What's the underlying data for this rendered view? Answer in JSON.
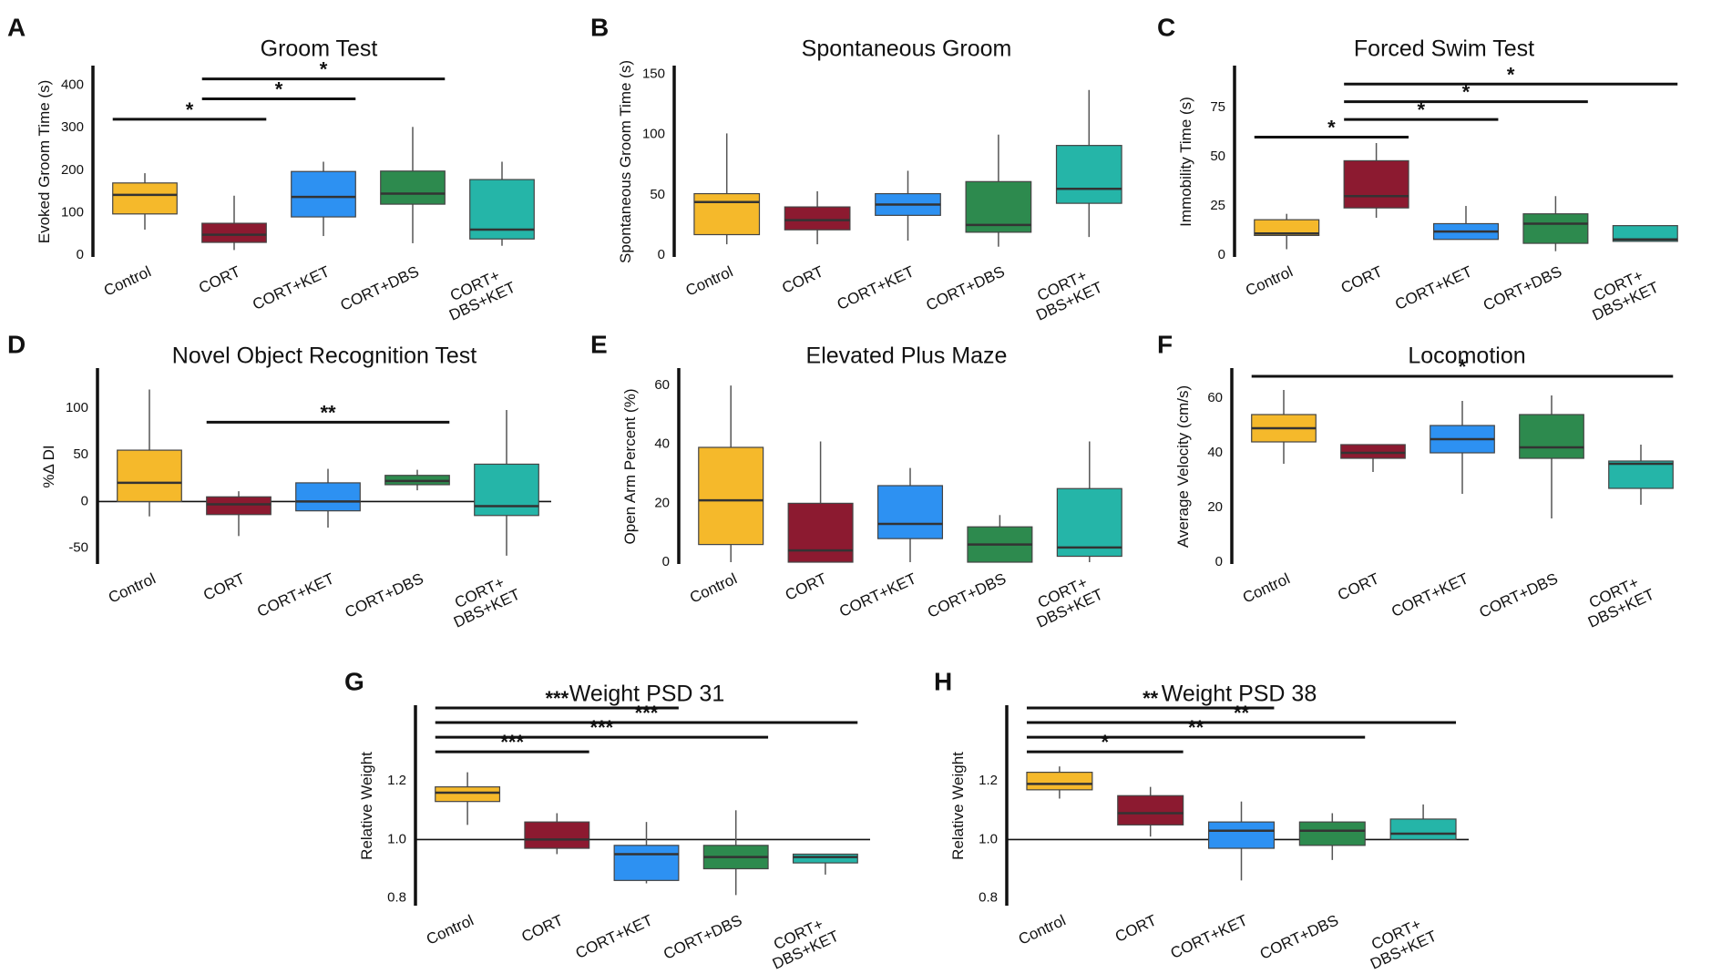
{
  "colors": {
    "Control": "#f5b92b",
    "CORT": "#8c1a30",
    "CORT+KET": "#2d91f2",
    "CORT+DBS": "#2d8a4e",
    "CORT+DBS+KET": "#25b5a8",
    "axis": "#111111",
    "median": "#333333"
  },
  "chart_data": [
    {
      "panel": "A",
      "type": "box",
      "title": "Groom Test",
      "ylabel": "Evoked Groom Time (s)",
      "ylim": [
        0,
        440
      ],
      "yticks": [
        0,
        100,
        200,
        300,
        400
      ],
      "zero_line": false,
      "categories": [
        [
          "Control"
        ],
        [
          "CORT"
        ],
        [
          "CORT+KET"
        ],
        [
          "CORT+DBS"
        ],
        [
          "CORT+",
          "DBS+KET"
        ]
      ],
      "boxes": [
        {
          "whisker_low": 60,
          "q1": 97,
          "median": 142,
          "q3": 170,
          "whisker_high": 193
        },
        {
          "whisker_low": 12,
          "q1": 30,
          "median": 48,
          "q3": 75,
          "whisker_high": 140
        },
        {
          "whisker_low": 45,
          "q1": 90,
          "median": 137,
          "q3": 197,
          "whisker_high": 220
        },
        {
          "whisker_low": 28,
          "q1": 120,
          "median": 145,
          "q3": 198,
          "whisker_high": 302
        },
        {
          "whisker_low": 22,
          "q1": 38,
          "median": 60,
          "q3": 178,
          "whisker_high": 220
        }
      ],
      "significance": [
        {
          "from": 0,
          "to": 1,
          "y": 320,
          "label": "*"
        },
        {
          "from": 1,
          "to": 2,
          "y": 368,
          "label": "*"
        },
        {
          "from": 1,
          "to": 3,
          "y": 415,
          "label": "*"
        }
      ]
    },
    {
      "panel": "B",
      "type": "box",
      "title": "Spontaneous Groom",
      "ylabel": "Spontaneous Groom Time (s)",
      "ylim": [
        0,
        155
      ],
      "yticks": [
        0,
        50,
        100,
        150
      ],
      "zero_line": false,
      "categories": [
        [
          "Control"
        ],
        [
          "CORT"
        ],
        [
          "CORT+KET"
        ],
        [
          "CORT+DBS"
        ],
        [
          "CORT+",
          "DBS+KET"
        ]
      ],
      "boxes": [
        {
          "whisker_low": 9,
          "q1": 17,
          "median": 44,
          "q3": 51,
          "whisker_high": 101
        },
        {
          "whisker_low": 9,
          "q1": 21,
          "median": 29,
          "q3": 40,
          "whisker_high": 53
        },
        {
          "whisker_low": 12,
          "q1": 33,
          "median": 42,
          "q3": 51,
          "whisker_high": 70
        },
        {
          "whisker_low": 7,
          "q1": 19,
          "median": 25,
          "q3": 61,
          "whisker_high": 100
        },
        {
          "whisker_low": 15,
          "q1": 43,
          "median": 55,
          "q3": 91,
          "whisker_high": 137
        }
      ],
      "significance": []
    },
    {
      "panel": "C",
      "type": "box",
      "title": "Forced Swim Test",
      "ylabel": "Immobility Time (s)",
      "ylim": [
        0,
        95
      ],
      "yticks": [
        0,
        25,
        50,
        75
      ],
      "zero_line": false,
      "categories": [
        [
          "Control"
        ],
        [
          "CORT"
        ],
        [
          "CORT+KET"
        ],
        [
          "CORT+DBS"
        ],
        [
          "CORT+",
          "DBS+KET"
        ]
      ],
      "boxes": [
        {
          "whisker_low": 3,
          "q1": 10,
          "median": 11,
          "q3": 18,
          "whisker_high": 21
        },
        {
          "whisker_low": 19,
          "q1": 24,
          "median": 30,
          "q3": 48,
          "whisker_high": 57
        },
        {
          "whisker_low": 8,
          "q1": 8,
          "median": 12,
          "q3": 16,
          "whisker_high": 25
        },
        {
          "whisker_low": 2,
          "q1": 6,
          "median": 16,
          "q3": 21,
          "whisker_high": 30
        },
        {
          "whisker_low": 7,
          "q1": 7,
          "median": 8,
          "q3": 15,
          "whisker_high": 15
        }
      ],
      "significance": [
        {
          "from": 0,
          "to": 1,
          "y": 60,
          "label": "*"
        },
        {
          "from": 1,
          "to": 2,
          "y": 69,
          "label": "*"
        },
        {
          "from": 1,
          "to": 3,
          "y": 78,
          "label": "*"
        },
        {
          "from": 1,
          "to": 4,
          "y": 87,
          "label": "*"
        }
      ]
    },
    {
      "panel": "D",
      "type": "box",
      "title": "Novel Object Recognition Test",
      "ylabel": "%Δ  DI",
      "ylim": [
        -65,
        140
      ],
      "yticks": [
        -50,
        0,
        50,
        100
      ],
      "zero_line": true,
      "categories": [
        [
          "Control"
        ],
        [
          "CORT"
        ],
        [
          "CORT+KET"
        ],
        [
          "CORT+DBS"
        ],
        [
          "CORT+",
          "DBS+KET"
        ]
      ],
      "boxes": [
        {
          "whisker_low": -16,
          "q1": 0,
          "median": 20,
          "q3": 55,
          "whisker_high": 120
        },
        {
          "whisker_low": -37,
          "q1": -14,
          "median": -3,
          "q3": 5,
          "whisker_high": 11
        },
        {
          "whisker_low": -28,
          "q1": -10,
          "median": 0,
          "q3": 20,
          "whisker_high": 35
        },
        {
          "whisker_low": 12,
          "q1": 18,
          "median": 22,
          "q3": 28,
          "whisker_high": 34
        },
        {
          "whisker_low": -58,
          "q1": -15,
          "median": -5,
          "q3": 40,
          "whisker_high": 98
        }
      ],
      "significance": [
        {
          "from": 1,
          "to": 3,
          "y": 85,
          "label": "**"
        }
      ]
    },
    {
      "panel": "E",
      "type": "box",
      "title": "Elevated Plus Maze",
      "ylabel": "Open Arm Percent (%)",
      "ylim": [
        0,
        65
      ],
      "yticks": [
        0,
        20,
        40,
        60
      ],
      "zero_line": false,
      "categories": [
        [
          "Control"
        ],
        [
          "CORT"
        ],
        [
          "CORT+KET"
        ],
        [
          "CORT+DBS"
        ],
        [
          "CORT+",
          "DBS+KET"
        ]
      ],
      "boxes": [
        {
          "whisker_low": 0,
          "q1": 6,
          "median": 21,
          "q3": 39,
          "whisker_high": 60
        },
        {
          "whisker_low": 0,
          "q1": 0,
          "median": 4,
          "q3": 20,
          "whisker_high": 41
        },
        {
          "whisker_low": 0,
          "q1": 8,
          "median": 13,
          "q3": 26,
          "whisker_high": 32
        },
        {
          "whisker_low": 0,
          "q1": 0,
          "median": 6,
          "q3": 12,
          "whisker_high": 16
        },
        {
          "whisker_low": 0,
          "q1": 2,
          "median": 5,
          "q3": 25,
          "whisker_high": 41
        }
      ],
      "significance": []
    },
    {
      "panel": "F",
      "type": "box",
      "title": "Locomotion",
      "ylabel": "Average Velocity (cm/s)",
      "ylim": [
        0,
        70
      ],
      "yticks": [
        0,
        20,
        40,
        60
      ],
      "zero_line": false,
      "categories": [
        [
          "Control"
        ],
        [
          "CORT"
        ],
        [
          "CORT+KET"
        ],
        [
          "CORT+DBS"
        ],
        [
          "CORT+",
          "DBS+KET"
        ]
      ],
      "boxes": [
        {
          "whisker_low": 36,
          "q1": 44,
          "median": 49,
          "q3": 54,
          "whisker_high": 63
        },
        {
          "whisker_low": 33,
          "q1": 38,
          "median": 40,
          "q3": 43,
          "whisker_high": 43
        },
        {
          "whisker_low": 25,
          "q1": 40,
          "median": 45,
          "q3": 50,
          "whisker_high": 59
        },
        {
          "whisker_low": 16,
          "q1": 38,
          "median": 42,
          "q3": 54,
          "whisker_high": 61
        },
        {
          "whisker_low": 21,
          "q1": 27,
          "median": 36,
          "q3": 37,
          "whisker_high": 43
        }
      ],
      "significance": [
        {
          "from": 0,
          "to": 4,
          "y": 68,
          "label": "*"
        }
      ]
    },
    {
      "panel": "G",
      "type": "box",
      "title": "Weight PSD 31",
      "ylabel": "Relative Weight",
      "ylim": [
        0.78,
        1.45
      ],
      "yticks": [
        0.8,
        1.0,
        1.2
      ],
      "tick_labels": [
        "0.8",
        "1.0",
        "1.2"
      ],
      "zero_line": false,
      "ref_line": 1.0,
      "categories": [
        [
          "Control"
        ],
        [
          "CORT"
        ],
        [
          "CORT+KET"
        ],
        [
          "CORT+DBS"
        ],
        [
          "CORT+",
          "DBS+KET"
        ]
      ],
      "boxes": [
        {
          "whisker_low": 1.05,
          "q1": 1.13,
          "median": 1.16,
          "q3": 1.18,
          "whisker_high": 1.23
        },
        {
          "whisker_low": 0.95,
          "q1": 0.97,
          "median": 1.0,
          "q3": 1.06,
          "whisker_high": 1.09
        },
        {
          "whisker_low": 0.85,
          "q1": 0.86,
          "median": 0.95,
          "q3": 0.98,
          "whisker_high": 1.06
        },
        {
          "whisker_low": 0.81,
          "q1": 0.9,
          "median": 0.94,
          "q3": 0.98,
          "whisker_high": 1.1
        },
        {
          "whisker_low": 0.88,
          "q1": 0.92,
          "median": 0.94,
          "q3": 0.95,
          "whisker_high": 0.95
        }
      ],
      "significance": [
        {
          "from": 0,
          "to": 1,
          "y": 1.3,
          "label": "***"
        },
        {
          "from": 0,
          "to": 3,
          "y": 1.35,
          "label": "***"
        },
        {
          "from": 0,
          "to": 4,
          "y": 1.4,
          "label": "***"
        },
        {
          "from": 0,
          "to": 2,
          "y": 1.45,
          "label": "***"
        }
      ]
    },
    {
      "panel": "H",
      "type": "box",
      "title": "Weight PSD 38",
      "ylabel": "Relative Weight",
      "ylim": [
        0.78,
        1.45
      ],
      "yticks": [
        0.8,
        1.0,
        1.2
      ],
      "tick_labels": [
        "0.8",
        "1.0",
        "1.2"
      ],
      "zero_line": false,
      "ref_line": 1.0,
      "categories": [
        [
          "Control"
        ],
        [
          "CORT"
        ],
        [
          "CORT+KET"
        ],
        [
          "CORT+DBS"
        ],
        [
          "CORT+",
          "DBS+KET"
        ]
      ],
      "boxes": [
        {
          "whisker_low": 1.14,
          "q1": 1.17,
          "median": 1.19,
          "q3": 1.23,
          "whisker_high": 1.25
        },
        {
          "whisker_low": 1.01,
          "q1": 1.05,
          "median": 1.09,
          "q3": 1.15,
          "whisker_high": 1.18
        },
        {
          "whisker_low": 0.86,
          "q1": 0.97,
          "median": 1.03,
          "q3": 1.06,
          "whisker_high": 1.13
        },
        {
          "whisker_low": 0.93,
          "q1": 0.98,
          "median": 1.03,
          "q3": 1.06,
          "whisker_high": 1.09
        },
        {
          "whisker_low": 1.0,
          "q1": 1.0,
          "median": 1.02,
          "q3": 1.07,
          "whisker_high": 1.12
        }
      ],
      "significance": [
        {
          "from": 0,
          "to": 1,
          "y": 1.3,
          "label": "*"
        },
        {
          "from": 0,
          "to": 3,
          "y": 1.35,
          "label": "**"
        },
        {
          "from": 0,
          "to": 4,
          "y": 1.4,
          "label": "**"
        },
        {
          "from": 0,
          "to": 2,
          "y": 1.45,
          "label": "**"
        }
      ]
    }
  ]
}
